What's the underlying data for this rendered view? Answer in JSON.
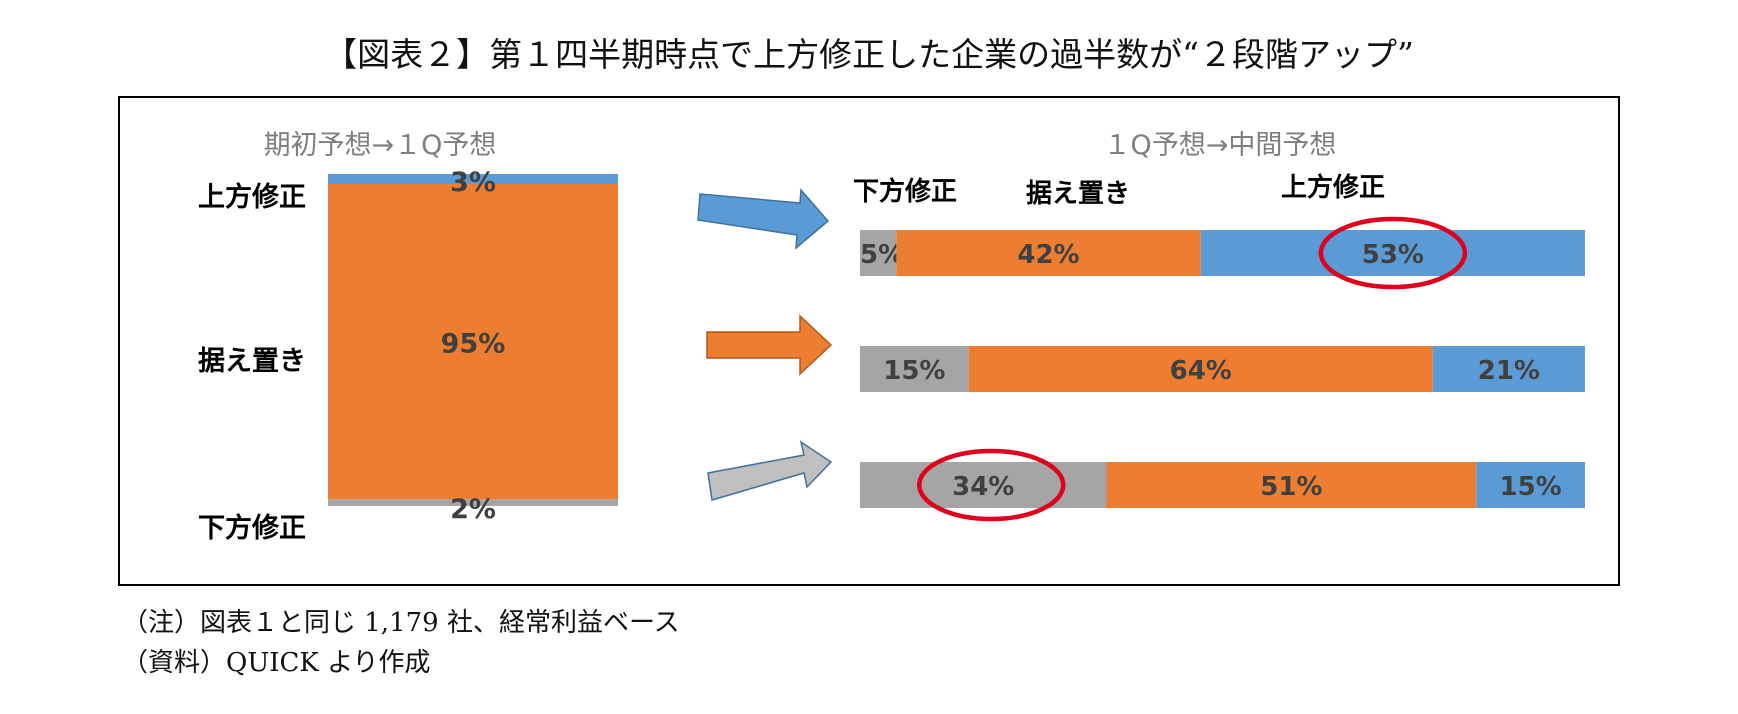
{
  "title": "【図表２】第１四半期時点で上方修正した企業の過半数が“２段階アップ”",
  "notes": [
    "（注）図表１と同じ 1,179 社、経常利益ベース",
    "（資料）QUICK より作成"
  ],
  "colors": {
    "gray": "#A5A5A5",
    "orange": "#ED7D31",
    "blue": "#5B9BD5",
    "highlight_circle": "#E0001B"
  },
  "chart_data": [
    {
      "type": "bar",
      "stacked": true,
      "orientation": "vertical",
      "title": "期初予想→１Q予想",
      "categories": [
        "上方修正",
        "据え置き",
        "下方修正"
      ],
      "values": [
        3,
        95,
        2
      ],
      "data_labels": [
        "3%",
        "95%",
        "2%"
      ],
      "unit": "%"
    },
    {
      "type": "bar",
      "stacked": true,
      "orientation": "horizontal",
      "title": "１Q予想→中間予想",
      "legend": [
        "下方修正",
        "据え置き",
        "上方修正"
      ],
      "rows": [
        {
          "from": "上方修正",
          "values": [
            5,
            42,
            53
          ],
          "labels": [
            "5%",
            "42%",
            "53%"
          ],
          "circled": 2
        },
        {
          "from": "据え置き",
          "values": [
            15,
            64,
            21
          ],
          "labels": [
            "15%",
            "64%",
            "21%"
          ]
        },
        {
          "from": "下方修正",
          "values": [
            34,
            51,
            15
          ],
          "labels": [
            "34%",
            "51%",
            "15%"
          ],
          "circled": 0
        }
      ],
      "unit": "%"
    }
  ]
}
